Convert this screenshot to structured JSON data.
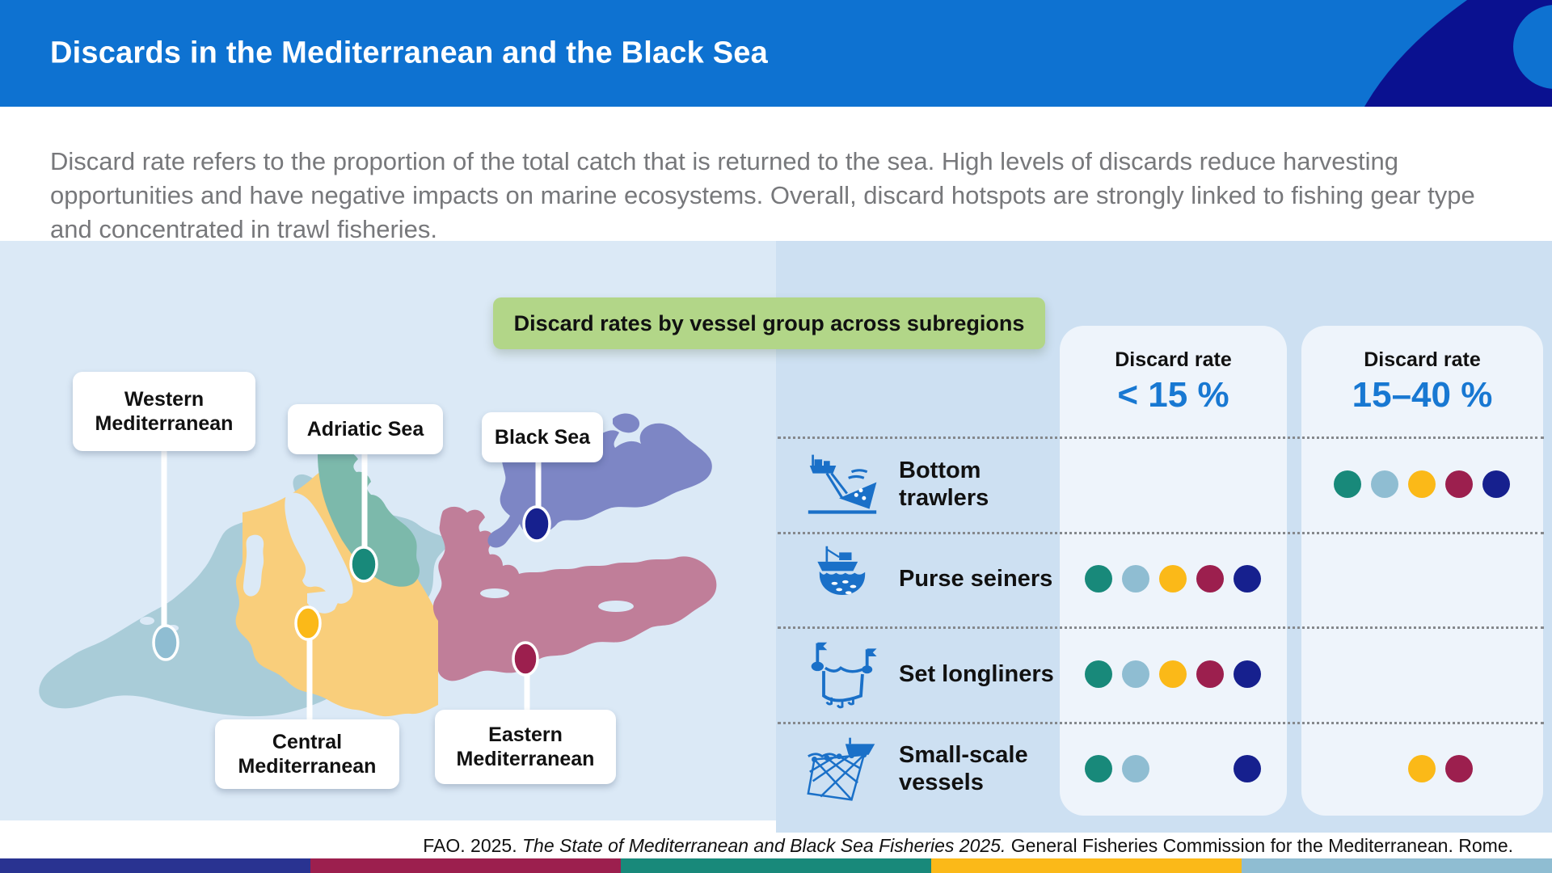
{
  "header": {
    "title": "Discards in the Mediterranean and the Black Sea",
    "bg": "#0e72d1",
    "wave_color": "#0a1190"
  },
  "intro": {
    "text": "Discard rate refers to the proportion of the total catch that is returned to the sea. High levels of discards reduce harvesting opportunities and have negative impacts on marine ecosystems. Overall, discard hotspots are strongly linked to fishing gear type and concentrated in trawl fisheries."
  },
  "section": {
    "badge_label": "Discard rates by vessel group across subregions",
    "badge_bg": "#b2d688"
  },
  "map": {
    "regions": [
      {
        "id": "western",
        "label": "Western Mediterranean",
        "color": "#a9ccd8",
        "dot": "#8fbdd2"
      },
      {
        "id": "adriatic",
        "label": "Adriatic Sea",
        "color": "#7cb9ab",
        "dot": "#18897a"
      },
      {
        "id": "black_sea",
        "label": "Black Sea",
        "color": "#7d86c5",
        "dot": "#16208e"
      },
      {
        "id": "central",
        "label": "Central Mediterranean",
        "color": "#f9ce7b",
        "dot": "#fbb918"
      },
      {
        "id": "eastern",
        "label": "Eastern Mediterranean",
        "color": "#c07e99",
        "dot": "#9c1f4e"
      }
    ],
    "sea_bg": "#dbe9f6"
  },
  "subregion_order": [
    "adriatic",
    "western",
    "central",
    "eastern",
    "black_sea"
  ],
  "subregion_colors": {
    "adriatic": "#18897a",
    "western": "#8fbdd2",
    "central": "#fbb918",
    "eastern": "#9c1f4e",
    "black_sea": "#16208e"
  },
  "table": {
    "columns": [
      {
        "title": "Discard rate",
        "range": "< 15 %"
      },
      {
        "title": "Discard rate",
        "range": "15–40 %"
      }
    ],
    "rows": [
      {
        "label": "Bottom trawlers",
        "icon": "bottom-trawler-icon",
        "col1": [],
        "col2": [
          "adriatic",
          "western",
          "central",
          "eastern",
          "black_sea"
        ]
      },
      {
        "label": "Purse seiners",
        "icon": "purse-seiner-icon",
        "col1": [
          "adriatic",
          "western",
          "central",
          "eastern",
          "black_sea"
        ],
        "col2": []
      },
      {
        "label": "Set longliners",
        "icon": "set-longliner-icon",
        "col1": [
          "adriatic",
          "western",
          "central",
          "eastern",
          "black_sea"
        ],
        "col2": []
      },
      {
        "label": "Small-scale vessels",
        "icon": "small-scale-icon",
        "col1": [
          "adriatic",
          "western",
          "black_sea"
        ],
        "col2": [
          "central",
          "eastern"
        ]
      }
    ]
  },
  "footer": {
    "citation_prefix": "FAO. 2025. ",
    "citation_italic": "The State of Mediterranean and Black Sea Fisheries 2025.",
    "citation_suffix": " General Fisheries Commission for the Mediterranean. Rome.",
    "bar_colors": [
      "#293391",
      "#9c1f4e",
      "#18897a",
      "#fbb918",
      "#8fbdd2"
    ]
  }
}
